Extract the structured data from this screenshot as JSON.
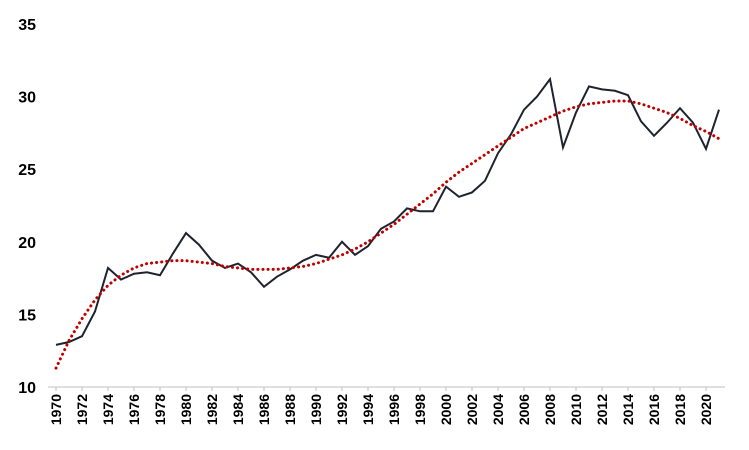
{
  "chart_data": {
    "type": "line",
    "title": "",
    "xlabel": "",
    "ylabel": "",
    "ylim": [
      10,
      35
    ],
    "y_ticks": [
      "10",
      "15",
      "20",
      "25",
      "30",
      "35"
    ],
    "x_ticks": [
      "1970",
      "1972",
      "1974",
      "1976",
      "1978",
      "1980",
      "1982",
      "1984",
      "1986",
      "1988",
      "1990",
      "1992",
      "1994",
      "1996",
      "1998",
      "2000",
      "2002",
      "2004",
      "2006",
      "2008",
      "2010",
      "2012",
      "2014",
      "2016",
      "2018",
      "2020"
    ],
    "grid": false,
    "legend": "none",
    "series": [
      {
        "style": "solid",
        "color": "#1f2330",
        "x": [
          1970,
          1971,
          1972,
          1973,
          1974,
          1975,
          1976,
          1977,
          1978,
          1979,
          1980,
          1981,
          1982,
          1983,
          1984,
          1985,
          1986,
          1987,
          1988,
          1989,
          1990,
          1991,
          1992,
          1993,
          1994,
          1995,
          1996,
          1997,
          1998,
          1999,
          2000,
          2001,
          2002,
          2003,
          2004,
          2005,
          2006,
          2007,
          2008,
          2009,
          2010,
          2011,
          2012,
          2013,
          2014,
          2015,
          2016,
          2017,
          2018,
          2019,
          2020,
          2021
        ],
        "values": [
          12.9,
          13.1,
          13.5,
          15.2,
          18.2,
          17.4,
          17.8,
          17.9,
          17.7,
          19.2,
          20.6,
          19.8,
          18.7,
          18.2,
          18.5,
          17.9,
          16.9,
          17.6,
          18.1,
          18.7,
          19.1,
          18.9,
          20.0,
          19.1,
          19.7,
          20.9,
          21.4,
          22.3,
          22.1,
          22.1,
          23.8,
          23.1,
          23.4,
          24.2,
          26.1,
          27.4,
          29.1,
          30.0,
          31.2,
          26.5,
          28.9,
          30.7,
          30.5,
          30.4,
          30.1,
          28.3,
          27.3,
          28.2,
          29.2,
          28.2,
          26.4,
          29.1
        ]
      },
      {
        "style": "dotted",
        "color": "#c00000",
        "x": [
          1970,
          1971,
          1972,
          1973,
          1974,
          1975,
          1976,
          1977,
          1978,
          1979,
          1980,
          1981,
          1982,
          1983,
          1984,
          1985,
          1986,
          1987,
          1988,
          1989,
          1990,
          1991,
          1992,
          1993,
          1994,
          1995,
          1996,
          1997,
          1998,
          1999,
          2000,
          2001,
          2002,
          2003,
          2004,
          2005,
          2006,
          2007,
          2008,
          2009,
          2010,
          2011,
          2012,
          2013,
          2014,
          2015,
          2016,
          2017,
          2018,
          2019,
          2020,
          2021
        ],
        "values": [
          11.3,
          13.2,
          14.7,
          16.0,
          17.0,
          17.7,
          18.2,
          18.5,
          18.6,
          18.7,
          18.7,
          18.6,
          18.5,
          18.3,
          18.2,
          18.1,
          18.1,
          18.1,
          18.2,
          18.3,
          18.5,
          18.8,
          19.1,
          19.5,
          20.0,
          20.6,
          21.2,
          21.9,
          22.6,
          23.3,
          24.1,
          24.8,
          25.4,
          26.0,
          26.6,
          27.2,
          27.8,
          28.2,
          28.6,
          29.0,
          29.3,
          29.5,
          29.6,
          29.7,
          29.7,
          29.5,
          29.2,
          28.9,
          28.5,
          28.0,
          27.6,
          27.1
        ]
      }
    ]
  }
}
